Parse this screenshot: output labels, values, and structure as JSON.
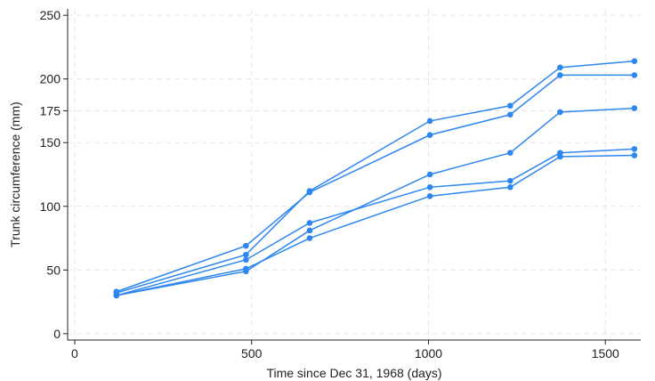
{
  "chart_data": {
    "type": "line",
    "title": "",
    "xlabel": "Time since Dec 31, 1968 (days)",
    "ylabel": "Trunk circumference (mm)",
    "xlim": [
      -20,
      1600
    ],
    "ylim": [
      -5,
      255
    ],
    "xticks": [
      0,
      500,
      1000,
      1500
    ],
    "yticks": [
      0,
      50,
      100,
      150,
      175,
      200,
      250
    ],
    "grid": true,
    "legend": "none",
    "line_color": "#2e86f0",
    "x": [
      118,
      484,
      664,
      1004,
      1231,
      1372,
      1582
    ],
    "series": [
      {
        "values": [
          30,
          58,
          87,
          115,
          120,
          142,
          145
        ]
      },
      {
        "values": [
          33,
          69,
          111,
          156,
          172,
          203,
          203
        ]
      },
      {
        "values": [
          30,
          51,
          75,
          108,
          115,
          139,
          140
        ]
      },
      {
        "values": [
          32,
          62,
          112,
          167,
          179,
          209,
          214
        ]
      },
      {
        "values": [
          30,
          49,
          81,
          125,
          142,
          174,
          177
        ]
      }
    ]
  }
}
